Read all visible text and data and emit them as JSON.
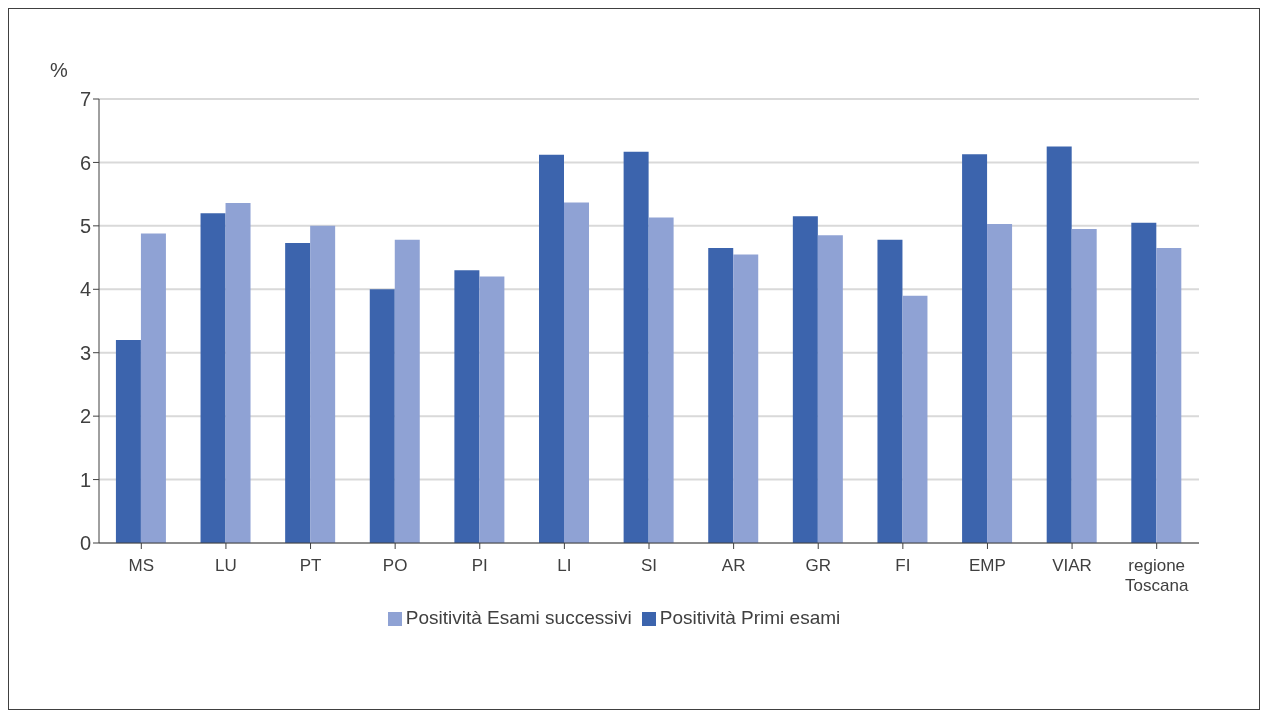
{
  "chart_data": {
    "type": "bar",
    "ylabel": "%",
    "categories": [
      "MS",
      "LU",
      "PT",
      "PO",
      "PI",
      "LI",
      "SI",
      "AR",
      "GR",
      "FI",
      "EMP",
      "VIAR",
      "regione Toscana"
    ],
    "series": [
      {
        "name": "Positività Primi esami",
        "color": "#3c64ad",
        "values": [
          3.2,
          5.2,
          4.73,
          4.0,
          4.3,
          6.12,
          6.17,
          4.65,
          5.15,
          4.78,
          6.13,
          6.25,
          5.05
        ]
      },
      {
        "name": "Positività Esami successivi",
        "color": "#8fa2d4",
        "values": [
          4.88,
          5.36,
          5.0,
          4.78,
          4.2,
          5.37,
          5.13,
          4.55,
          4.85,
          3.9,
          5.03,
          4.95,
          4.65
        ]
      }
    ],
    "ylim": [
      0,
      7
    ],
    "yticks": [
      0,
      1,
      2,
      3,
      4,
      5,
      6,
      7
    ],
    "grid": "y",
    "legend": "bottom"
  }
}
